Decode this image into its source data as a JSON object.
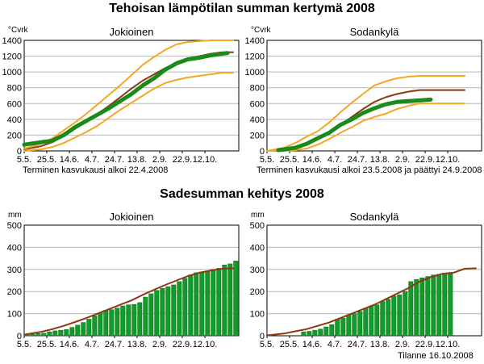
{
  "heading_temp": "Tehoisan lämpötilan summan kertymä 2008",
  "heading_rain": "Sadesumman kehitys 2008",
  "footer": "Tilanne 16.10.2008",
  "x_tick_labels": [
    "5.5.",
    "25.5.",
    "14.6.",
    "4.7.",
    "24.7.",
    "13.8.",
    "2.9.",
    "22.9.",
    "12.10."
  ],
  "colors": {
    "green": "#1a8a1a",
    "brown": "#8b3a10",
    "orange": "#f5a623",
    "bar_green": "#129a2a",
    "bar_edge": "#0b6b1a"
  },
  "chart_data": [
    {
      "type": "line",
      "title": "Jokioinen",
      "ylabel": "°Cvrk",
      "ylim": [
        0,
        1400
      ],
      "yticks": [
        0,
        200,
        400,
        600,
        800,
        1000,
        1200,
        1400
      ],
      "note": "Terminen kasvukausi alkoi 22.4.2008",
      "series": [
        {
          "role": "year",
          "color": "green",
          "width": 5,
          "x": [
            0,
            3,
            5,
            7,
            9,
            11,
            13,
            15,
            17,
            19,
            21,
            23,
            25,
            27,
            29,
            31,
            33,
            35,
            36
          ],
          "y": [
            80,
            110,
            130,
            200,
            300,
            380,
            460,
            540,
            630,
            720,
            830,
            920,
            1030,
            1110,
            1160,
            1180,
            1210,
            1230,
            1240
          ]
        },
        {
          "role": "mean",
          "color": "brown",
          "width": 2,
          "x": [
            0,
            3,
            5,
            7,
            9,
            11,
            13,
            15,
            17,
            19,
            21,
            23,
            25,
            27,
            29,
            31,
            33,
            35,
            37
          ],
          "y": [
            20,
            60,
            110,
            190,
            280,
            370,
            470,
            570,
            680,
            790,
            890,
            970,
            1050,
            1110,
            1160,
            1200,
            1230,
            1250,
            1250
          ]
        },
        {
          "role": "max",
          "color": "orange",
          "width": 2,
          "x": [
            0,
            3,
            5,
            7,
            9,
            11,
            13,
            15,
            17,
            19,
            21,
            23,
            25,
            27,
            29,
            31,
            33,
            35,
            37
          ],
          "y": [
            30,
            90,
            160,
            260,
            360,
            470,
            590,
            710,
            830,
            960,
            1090,
            1190,
            1280,
            1350,
            1380,
            1390,
            1400,
            1400,
            1400
          ]
        },
        {
          "role": "min",
          "color": "orange",
          "width": 2,
          "x": [
            0,
            3,
            5,
            7,
            9,
            11,
            13,
            15,
            17,
            19,
            21,
            23,
            25,
            27,
            29,
            31,
            33,
            35,
            37
          ],
          "y": [
            0,
            20,
            50,
            100,
            170,
            240,
            320,
            420,
            520,
            610,
            700,
            790,
            860,
            900,
            930,
            950,
            970,
            990,
            990
          ]
        }
      ]
    },
    {
      "type": "line",
      "title": "Sodankylä",
      "ylabel": "°Cvrk",
      "ylim": [
        0,
        1400
      ],
      "yticks": [
        0,
        200,
        400,
        600,
        800,
        1000,
        1200,
        1400
      ],
      "note": "Terminen kasvukausi alkoi 23.5.2008 ja päättyi 24.9.2008",
      "series": [
        {
          "role": "year",
          "color": "green",
          "width": 5,
          "x": [
            2,
            5,
            7,
            9,
            11,
            13,
            15,
            17,
            19,
            21,
            23,
            25,
            27,
            29
          ],
          "y": [
            10,
            40,
            90,
            160,
            230,
            330,
            400,
            480,
            540,
            590,
            620,
            630,
            640,
            650
          ]
        },
        {
          "role": "mean",
          "color": "brown",
          "width": 2,
          "x": [
            0,
            3,
            5,
            7,
            9,
            11,
            13,
            15,
            17,
            19,
            21,
            23,
            25,
            27,
            29,
            31,
            33,
            35
          ],
          "y": [
            0,
            10,
            30,
            80,
            150,
            240,
            330,
            430,
            530,
            620,
            680,
            720,
            750,
            770,
            770,
            770,
            770,
            770
          ]
        },
        {
          "role": "max",
          "color": "orange",
          "width": 2,
          "x": [
            0,
            3,
            5,
            7,
            9,
            11,
            13,
            15,
            17,
            19,
            21,
            23,
            25,
            27,
            29,
            31,
            33,
            35
          ],
          "y": [
            0,
            40,
            100,
            180,
            250,
            360,
            490,
            610,
            720,
            830,
            880,
            920,
            940,
            950,
            950,
            950,
            950,
            950
          ]
        },
        {
          "role": "min",
          "color": "orange",
          "width": 2,
          "x": [
            0,
            3,
            5,
            7,
            9,
            11,
            13,
            15,
            17,
            19,
            21,
            23,
            25,
            27,
            29,
            31,
            33,
            35
          ],
          "y": [
            0,
            0,
            10,
            30,
            80,
            150,
            230,
            300,
            380,
            430,
            470,
            530,
            570,
            600,
            600,
            600,
            600,
            600
          ]
        }
      ]
    },
    {
      "type": "bar",
      "title": "Jokioinen",
      "ylabel": "mm",
      "ylim": [
        0,
        500
      ],
      "yticks": [
        0,
        100,
        200,
        300,
        400,
        500
      ],
      "bar_start": 0,
      "bar_step": 1,
      "values": [
        6,
        8,
        10,
        12,
        18,
        22,
        25,
        28,
        38,
        48,
        60,
        75,
        90,
        105,
        115,
        118,
        125,
        135,
        140,
        142,
        150,
        175,
        190,
        205,
        215,
        222,
        230,
        245,
        260,
        275,
        285,
        288,
        290,
        300,
        305,
        320,
        325,
        338
      ],
      "series": [
        {
          "role": "mean",
          "color": "brown",
          "width": 2,
          "x": [
            0,
            3,
            5,
            7,
            9,
            11,
            13,
            15,
            17,
            19,
            21,
            23,
            25,
            27,
            29,
            31,
            33,
            35,
            37
          ],
          "y": [
            5,
            18,
            30,
            45,
            62,
            80,
            100,
            120,
            140,
            160,
            185,
            208,
            230,
            250,
            270,
            285,
            295,
            303,
            305
          ]
        }
      ]
    },
    {
      "type": "bar",
      "title": "Sodankylä",
      "ylabel": "mm",
      "ylim": [
        0,
        500
      ],
      "yticks": [
        0,
        100,
        200,
        300,
        400,
        500
      ],
      "bar_start": 6,
      "bar_step": 1,
      "values": [
        18,
        20,
        25,
        30,
        40,
        50,
        75,
        80,
        95,
        100,
        110,
        125,
        135,
        140,
        155,
        165,
        180,
        185,
        200,
        245,
        255,
        262,
        268,
        275,
        278,
        280,
        285
      ],
      "series": [
        {
          "role": "mean",
          "color": "brown",
          "width": 2,
          "x": [
            0,
            3,
            5,
            7,
            9,
            11,
            13,
            15,
            17,
            19,
            21,
            23,
            25,
            27,
            29,
            31,
            33,
            35,
            37
          ],
          "y": [
            2,
            10,
            20,
            30,
            45,
            60,
            80,
            100,
            120,
            140,
            165,
            190,
            215,
            245,
            265,
            280,
            285,
            303,
            305
          ]
        }
      ]
    }
  ]
}
